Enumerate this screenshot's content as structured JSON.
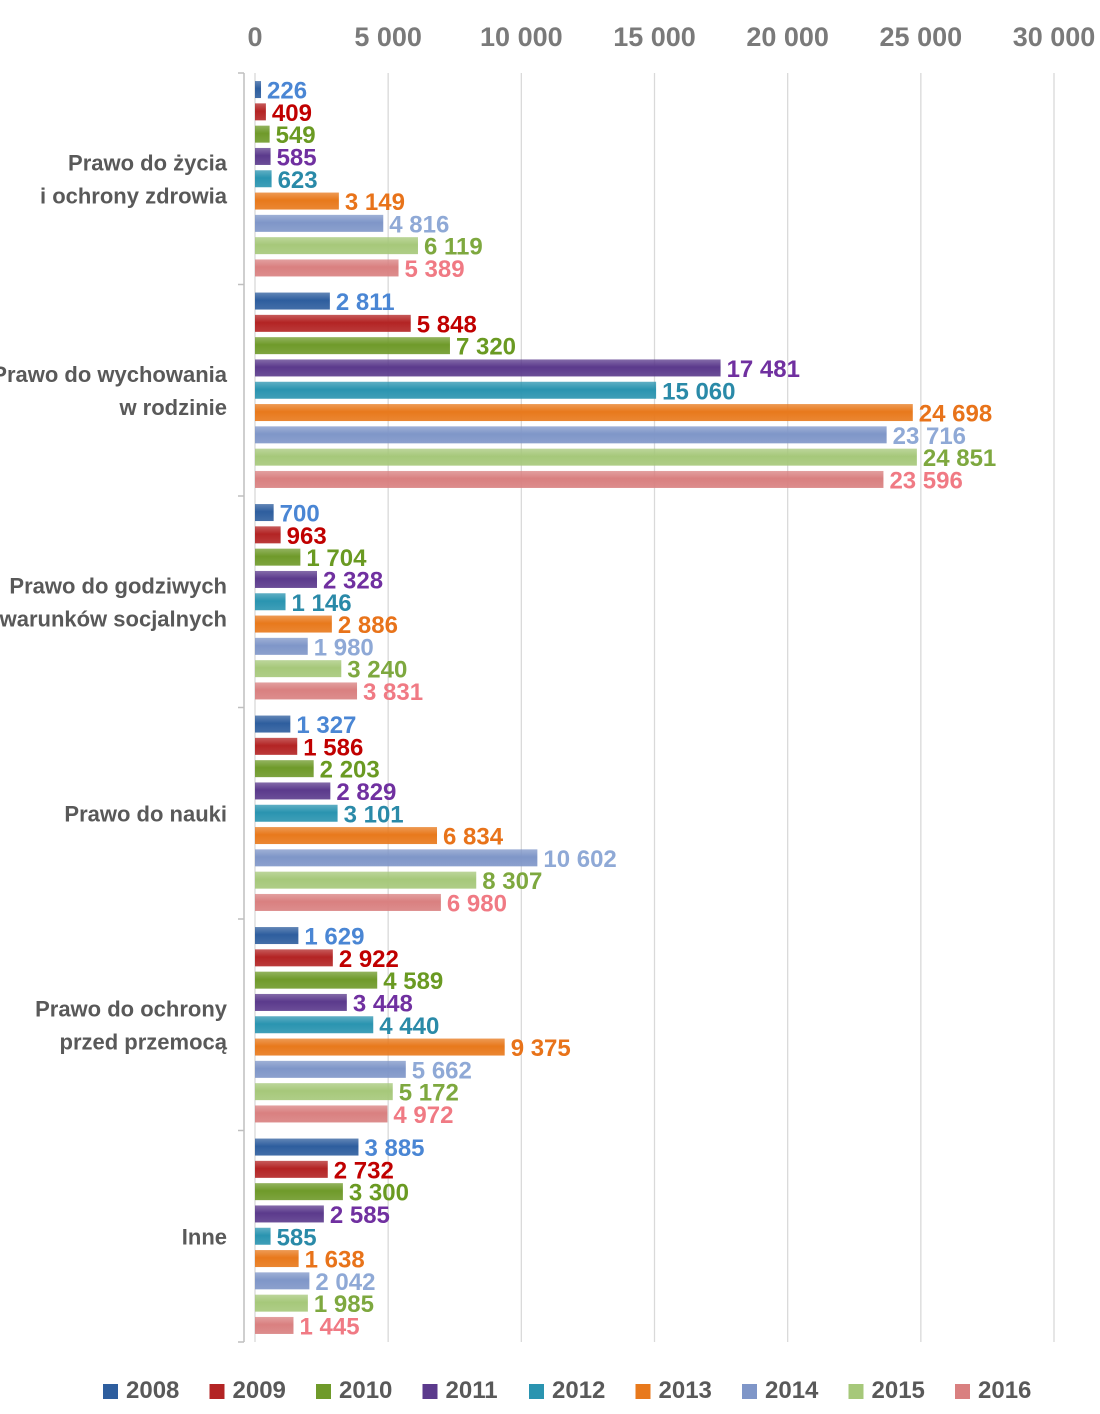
{
  "chart_data": {
    "type": "bar",
    "orientation": "horizontal",
    "title": "",
    "xlabel": "",
    "ylabel": "",
    "xlim": [
      0,
      30000
    ],
    "x_ticks": [
      0,
      5000,
      10000,
      15000,
      20000,
      25000,
      30000
    ],
    "x_tick_labels": [
      "0",
      "5 000",
      "10 000",
      "15 000",
      "20 000",
      "25 000",
      "30 000"
    ],
    "x_axis_position": "top",
    "grid": true,
    "legend_position": "bottom",
    "categories": [
      [
        "Prawo do życia",
        "i ochrony zdrowia"
      ],
      [
        "Prawo do wychowania",
        "w rodzinie"
      ],
      [
        "Prawo do godziwych",
        "warunków socjalnych"
      ],
      [
        "Prawo do nauki"
      ],
      [
        "Prawo do ochrony",
        "przed przemocą"
      ],
      [
        "Inne"
      ]
    ],
    "series": [
      {
        "name": "2008",
        "color": "#2e5e9e",
        "label_color": "#4a86d4",
        "values": [
          226,
          2811,
          700,
          1327,
          1629,
          3885
        ],
        "labels": [
          "226",
          "2 811",
          "700",
          "1 327",
          "1 629",
          "3 885"
        ]
      },
      {
        "name": "2009",
        "color": "#b32424",
        "label_color": "#c00000",
        "values": [
          409,
          5848,
          963,
          1586,
          2922,
          2732
        ],
        "labels": [
          "409",
          "5 848",
          "963",
          "1 586",
          "2 922",
          "2 732"
        ]
      },
      {
        "name": "2010",
        "color": "#6f9a2a",
        "label_color": "#6a9a22",
        "values": [
          549,
          7320,
          1704,
          2203,
          4589,
          3300
        ],
        "labels": [
          "549",
          "7 320",
          "1 704",
          "2 203",
          "4 589",
          "3 300"
        ]
      },
      {
        "name": "2011",
        "color": "#5b3a8c",
        "label_color": "#7030a0",
        "values": [
          585,
          17481,
          2328,
          2829,
          3448,
          2585
        ],
        "labels": [
          "585",
          "17 481",
          "2 328",
          "2 829",
          "3 448",
          "2 585"
        ]
      },
      {
        "name": "2012",
        "color": "#2a94b0",
        "label_color": "#2a8aa8",
        "values": [
          623,
          15060,
          1146,
          3101,
          4440,
          585
        ],
        "labels": [
          "623",
          "15 060",
          "1 146",
          "3 101",
          "4 440",
          "585"
        ]
      },
      {
        "name": "2013",
        "color": "#e8791c",
        "label_color": "#e8731a",
        "values": [
          3149,
          24698,
          2886,
          6834,
          9375,
          1638
        ],
        "labels": [
          "3 149",
          "24 698",
          "2 886",
          "6 834",
          "9 375",
          "1 638"
        ]
      },
      {
        "name": "2014",
        "color": "#7f96c8",
        "label_color": "#8fa9d6",
        "values": [
          4816,
          23716,
          1980,
          10602,
          5662,
          2042
        ],
        "labels": [
          "4 816",
          "23 716",
          "1 980",
          "10 602",
          "5 662",
          "2 042"
        ]
      },
      {
        "name": "2015",
        "color": "#a6c87a",
        "label_color": "#7ea83f",
        "values": [
          6119,
          24851,
          3240,
          8307,
          5172,
          1985
        ],
        "labels": [
          "6 119",
          "24 851",
          "3 240",
          "8 307",
          "5 172",
          "1 985"
        ]
      },
      {
        "name": "2016",
        "color": "#d98080",
        "label_color": "#f07a84",
        "values": [
          5389,
          23596,
          3831,
          6980,
          4972,
          1445
        ],
        "labels": [
          "5 389",
          "23 596",
          "3 831",
          "6 980",
          "4 972",
          "1 445"
        ]
      }
    ]
  }
}
